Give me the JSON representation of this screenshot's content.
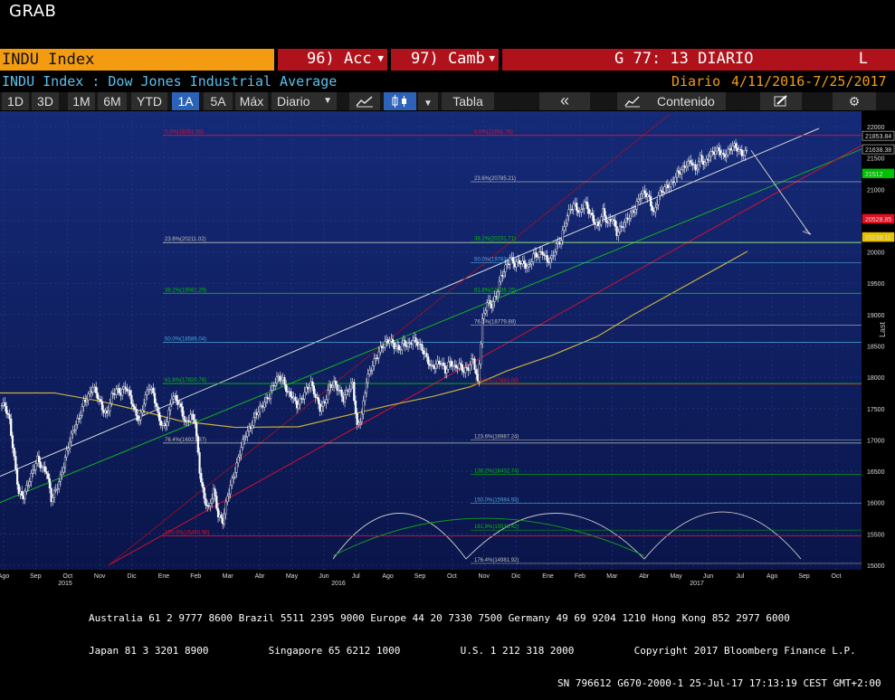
{
  "window": {
    "title": "GRAB"
  },
  "header": {
    "ticker": "INDU Index",
    "menu1": "96) Acc",
    "menu2": "97) Camb",
    "chart_id": "G 77: 13 DIARIO",
    "flag": "L"
  },
  "subheader": {
    "security": "INDU Index : Dow Jones Industrial Average",
    "period": "Diario",
    "range": "4/11/2016-7/25/2017"
  },
  "toolbar": {
    "ranges": [
      "1D",
      "3D",
      "1M",
      "6M",
      "YTD",
      "1A",
      "5A",
      "Máx"
    ],
    "selected_range": "1A",
    "frequency": "Diario",
    "table_label": "Tabla",
    "back_label": "«",
    "content_label": "Contenido"
  },
  "chart_data": {
    "type": "candlestick",
    "y_axis_right_label": "Last",
    "ylim": [
      15000,
      22200
    ],
    "y_ticks": [
      15000,
      15500,
      16000,
      16500,
      17000,
      17500,
      18000,
      18500,
      19000,
      19500,
      20000,
      20500,
      21000,
      21500,
      22000
    ],
    "x_ticks": [
      "Ago",
      "Sep",
      "Oct",
      "Nov",
      "Dic",
      "Ene",
      "Feb",
      "Mar",
      "Abr",
      "May",
      "Jun",
      "Jul",
      "Ago",
      "Sep",
      "Oct",
      "Nov",
      "Dic",
      "Ene",
      "Feb",
      "Mar",
      "Abr",
      "May",
      "Jun",
      "Jul",
      "Ago",
      "Sep",
      "Oct"
    ],
    "year_labels": [
      "2015",
      "2016",
      "2017"
    ],
    "price_tags": [
      {
        "value": "21853.84",
        "color": "#ffffff"
      },
      {
        "value": "21638.38",
        "color": "#ffffff"
      },
      {
        "value": "21512",
        "color": "#00c000"
      },
      {
        "value": "20528.85",
        "color": "#e01020"
      },
      {
        "value": "20238.11",
        "color": "#e6c200"
      }
    ],
    "fib_left": [
      {
        "label": "0.0%(18351.36)",
        "value": 21860,
        "color": "#e01030"
      },
      {
        "label": "23.6%(20211.02)",
        "value": 20150,
        "color": "#c0c0c0"
      },
      {
        "label": "38.2%(19081.29)",
        "value": 19340,
        "color": "#00c000"
      },
      {
        "label": "50.0%(18586.04)",
        "value": 18560,
        "color": "#4aa8e0"
      },
      {
        "label": "61.8%(17920.76)",
        "value": 17900,
        "color": "#00c000"
      },
      {
        "label": "76.4%(16923.87)",
        "value": 16950,
        "color": "#c0c0c0"
      },
      {
        "label": "100.0%(15450.56)",
        "value": 15470,
        "color": "#e01030"
      }
    ],
    "fib_right": [
      {
        "label": "0.0%(21681.78)",
        "value": 21860,
        "color": "#e01030"
      },
      {
        "label": "23.6%(20785.21)",
        "value": 21120,
        "color": "#c0c0c0"
      },
      {
        "label": "38.2%(20231.71)",
        "value": 20160,
        "color": "#00c000"
      },
      {
        "label": "50.0%(19783.93)",
        "value": 19830,
        "color": "#4aa8e0"
      },
      {
        "label": "61.8%(19336.15)",
        "value": 19340,
        "color": "#00c000"
      },
      {
        "label": "76.4%(18779.88)",
        "value": 18830,
        "color": "#c0c0c0"
      },
      {
        "label": "100.0%(17883.05)",
        "value": 17890,
        "color": "#e01030"
      },
      {
        "label": "123.6%(16987.24)",
        "value": 17000,
        "color": "#c0c0c0"
      },
      {
        "label": "138.2%(16432.74)",
        "value": 16450,
        "color": "#00c000"
      },
      {
        "label": "150.0%(15984.93)",
        "value": 15990,
        "color": "#4aa8e0"
      },
      {
        "label": "161.8%(15538.42)",
        "value": 15560,
        "color": "#00c000"
      },
      {
        "label": "176.4%(14981.92)",
        "value": 15030,
        "color": "#c0c0c0"
      }
    ],
    "price_series": [
      17550,
      17300,
      16700,
      16150,
      16100,
      16300,
      16500,
      16700,
      16550,
      16500,
      16050,
      16200,
      16400,
      16700,
      17000,
      17200,
      17350,
      17600,
      17700,
      17850,
      17700,
      17500,
      17400,
      17700,
      17800,
      17750,
      17850,
      17700,
      17450,
      17300,
      17600,
      17850,
      17750,
      17400,
      17200,
      17300,
      17700,
      17650,
      17500,
      17250,
      17400,
      17300,
      16500,
      16050,
      15900,
      16200,
      15800,
      15700,
      16100,
      16350,
      16600,
      16900,
      17100,
      17200,
      17400,
      17500,
      17600,
      17700,
      17900,
      18000,
      17950,
      17750,
      17700,
      17550,
      17650,
      17800,
      17900,
      17700,
      17500,
      17600,
      17850,
      17900,
      17800,
      17650,
      17800,
      17900,
      17200,
      17400,
      17950,
      18150,
      18300,
      18450,
      18550,
      18600,
      18500,
      18450,
      18550,
      18500,
      18600,
      18550,
      18450,
      18300,
      18150,
      18200,
      18250,
      18100,
      18250,
      18150,
      18200,
      18100,
      18150,
      18300,
      17900,
      18900,
      19200,
      19150,
      19300,
      19600,
      19750,
      19900,
      19800,
      19850,
      19800,
      19750,
      19950,
      19950,
      20000,
      19850,
      19900,
      20100,
      20200,
      20500,
      20700,
      20750,
      20600,
      20800,
      20650,
      20500,
      20400,
      20650,
      20450,
      20550,
      20300,
      20400,
      20500,
      20600,
      20700,
      20900,
      20950,
      20850,
      20600,
      20900,
      21000,
      21050,
      21100,
      21250,
      21300,
      21400,
      21450,
      21300,
      21500,
      21400,
      21550,
      21600,
      21630,
      21520,
      21600,
      21700,
      21650,
      21560,
      21600
    ]
  },
  "footer": {
    "line1": "Australia 61 2 9777 8600 Brazil 5511 2395 9000 Europe 44 20 7330 7500 Germany 49 69 9204 1210 Hong Kong 852 2977 6000",
    "line2": "Japan 81 3 3201 8900          Singapore 65 6212 1000          U.S. 1 212 318 2000          Copyright 2017 Bloomberg Finance L.P.",
    "line3": "SN 796612 G670-2000-1 25-Jul-17 17:13:19 CEST GMT+2:00"
  }
}
